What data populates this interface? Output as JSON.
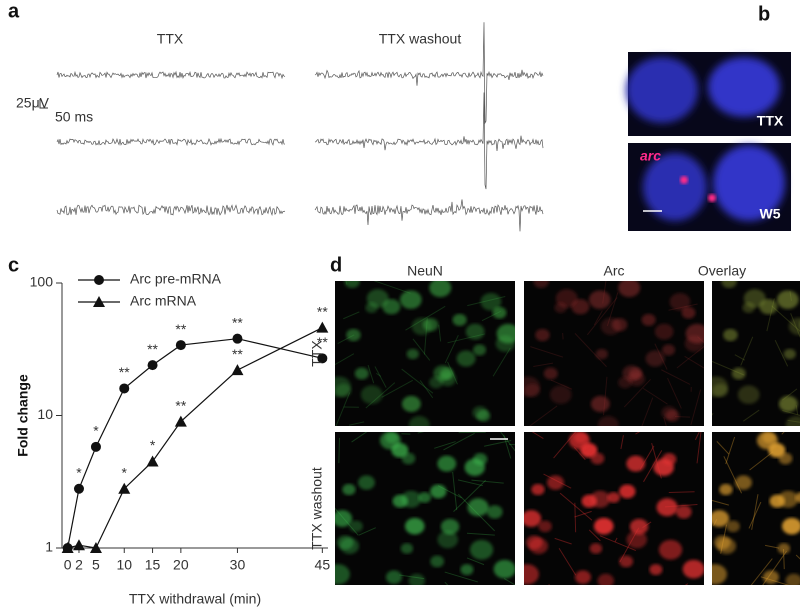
{
  "panel_a": {
    "label": "a",
    "left_title": "TTX",
    "right_title": "TTX washout",
    "scale_v": "25μV",
    "scale_t": "50 ms"
  },
  "panel_b": {
    "label": "b",
    "top_label": "TTX",
    "gene": "arc",
    "bottom_label": "W5"
  },
  "panel_c": {
    "label": "c"
  },
  "chart_data": {
    "type": "line",
    "x_label": "TTX withdrawal (min)",
    "y_label": "Fold change",
    "x": [
      0,
      2,
      5,
      10,
      15,
      20,
      30,
      45
    ],
    "series": [
      {
        "name": "Arc pre-mRNA",
        "color": "#111111",
        "marker": "circle",
        "values": [
          1,
          2.8,
          5.8,
          16,
          24,
          34,
          38,
          27
        ],
        "stars": [
          null,
          "*",
          "*",
          "**",
          "**",
          "**",
          "**",
          "**"
        ]
      },
      {
        "name": "Arc mRNA",
        "color": "#111111",
        "marker": "triangle",
        "values": [
          1,
          1.05,
          1,
          2.8,
          4.5,
          9,
          22,
          46
        ],
        "stars": [
          null,
          null,
          null,
          "*",
          "*",
          "**",
          "**",
          "**"
        ]
      }
    ],
    "xlim": [
      -1,
      46
    ],
    "xticks": [
      0,
      2,
      5,
      10,
      15,
      20,
      30,
      45
    ],
    "ylim": [
      1,
      100
    ],
    "yticks": [
      1,
      10,
      100
    ],
    "log_y": true,
    "legend": "upper left"
  },
  "panel_d": {
    "label": "d",
    "columns": [
      "NeuN",
      "Arc",
      "Overlay"
    ],
    "rows": [
      "TTX",
      "TTX washout"
    ]
  }
}
